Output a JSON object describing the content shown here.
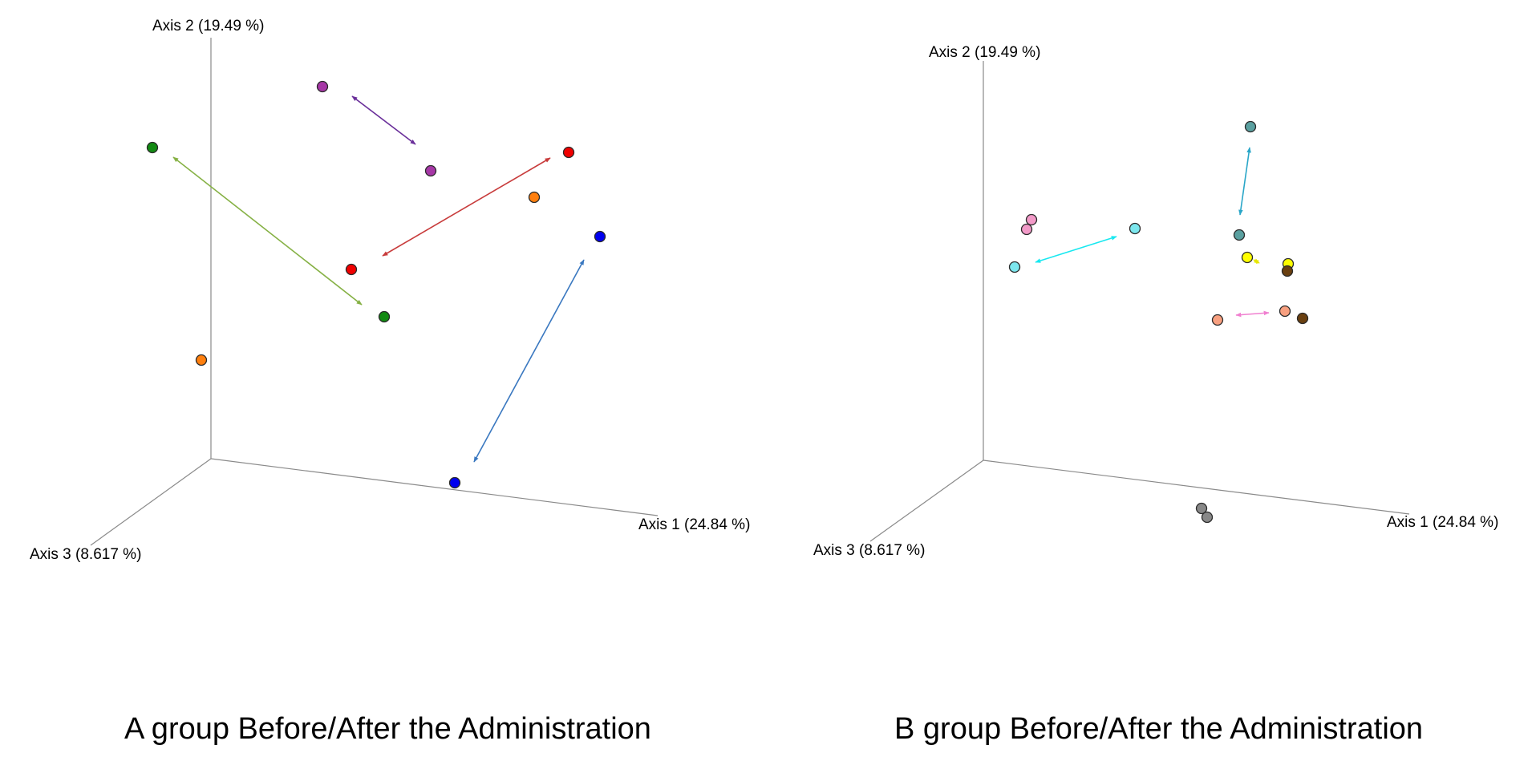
{
  "chart_data": [
    {
      "type": "scatter",
      "subtype": "3d-pcoa",
      "title": "A group Before/After the Administration",
      "axes": {
        "x": "Axis 1 (24.84 %)",
        "y": "Axis 2 (19.49 %)",
        "z": "Axis 3 (8.617 %)"
      },
      "points": [
        {
          "color": "#a637a6"
        },
        {
          "color": "#a637a6"
        },
        {
          "color": "#138a13"
        },
        {
          "color": "#138a13"
        },
        {
          "color": "#f00000"
        },
        {
          "color": "#f00000"
        },
        {
          "color": "#ff7f0e"
        },
        {
          "color": "#ff7f0e"
        },
        {
          "color": "#0000ee"
        },
        {
          "color": "#0000ee"
        }
      ],
      "arrows": [
        {
          "color": "#6a2f9a"
        },
        {
          "color": "#86b145"
        },
        {
          "color": "#c83c3c"
        },
        {
          "color": "#3a78c0"
        }
      ]
    },
    {
      "type": "scatter",
      "subtype": "3d-pcoa",
      "title": "B group Before/After the Administration",
      "axes": {
        "x": "Axis 1 (24.84 %)",
        "y": "Axis 2 (19.49 %)",
        "z": "Axis 3 (8.617 %)"
      },
      "points": [
        {
          "color": "#5aa0a0"
        },
        {
          "color": "#5aa0a0"
        },
        {
          "color": "#f29ac8"
        },
        {
          "color": "#f29ac8"
        },
        {
          "color": "#7ce7ee"
        },
        {
          "color": "#7ce7ee"
        },
        {
          "color": "#ffff00"
        },
        {
          "color": "#ffff00"
        },
        {
          "color": "#6a4010"
        },
        {
          "color": "#6a4010"
        },
        {
          "color": "#f8a080"
        },
        {
          "color": "#f8a080"
        },
        {
          "color": "#888888"
        },
        {
          "color": "#888888"
        }
      ],
      "arrows": [
        {
          "color": "#2aa6c8"
        },
        {
          "color": "#18e8f0"
        },
        {
          "color": "#f080d0"
        },
        {
          "color": "#e6e600"
        }
      ]
    }
  ]
}
